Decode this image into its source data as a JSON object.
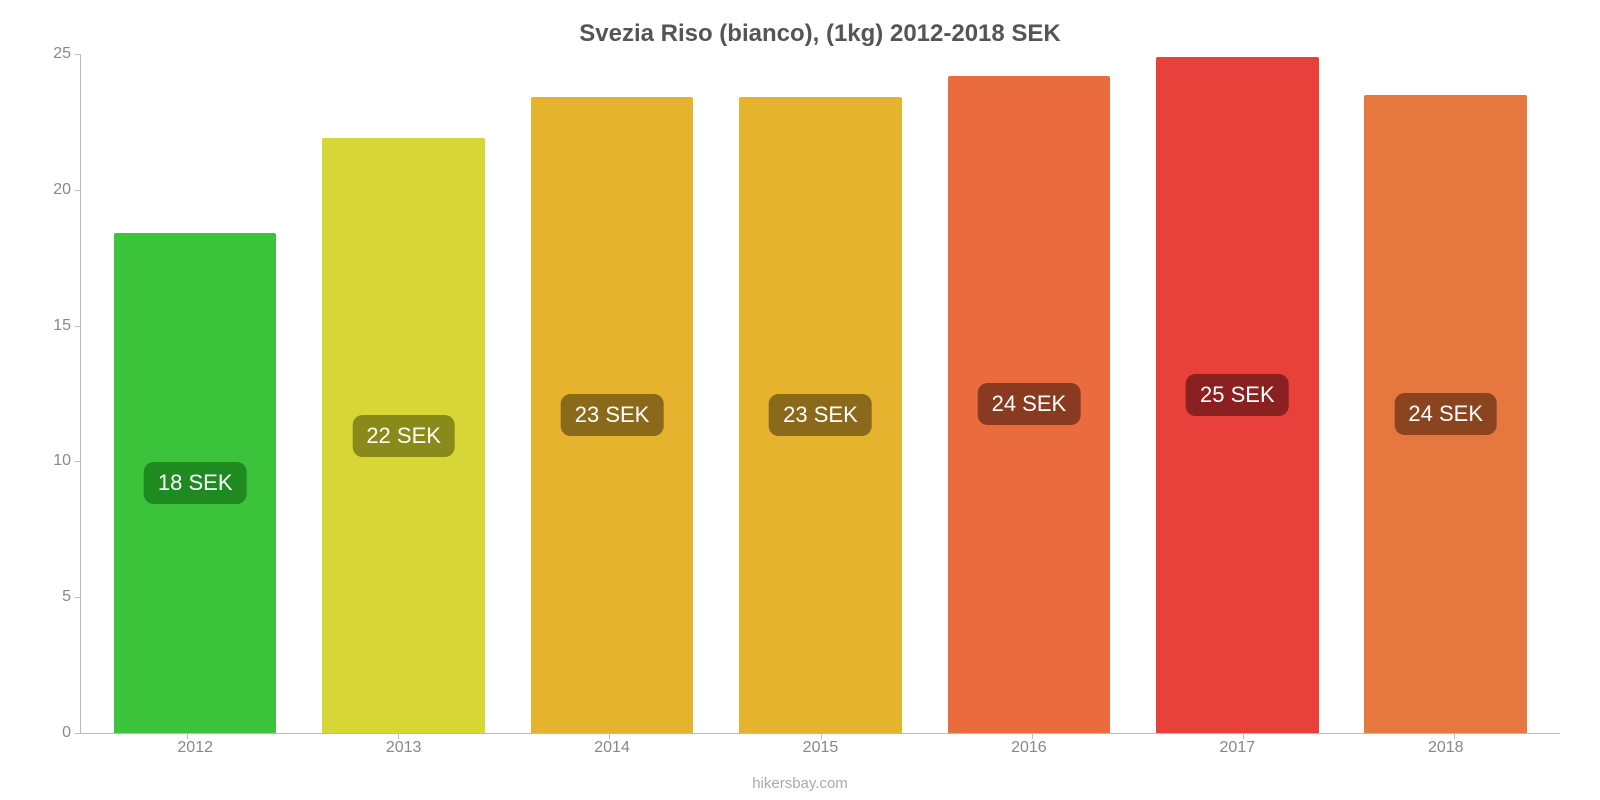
{
  "chart": {
    "type": "bar",
    "title": "Svezia Riso (bianco), (1kg) 2012-2018 SEK",
    "title_fontsize": 24,
    "title_color": "#555555",
    "categories": [
      "2012",
      "2013",
      "2014",
      "2015",
      "2016",
      "2017",
      "2018"
    ],
    "values": [
      18.4,
      21.9,
      23.4,
      23.4,
      24.2,
      24.9,
      23.5
    ],
    "bar_labels": [
      "18 SEK",
      "22 SEK",
      "23 SEK",
      "23 SEK",
      "24 SEK",
      "25 SEK",
      "24 SEK"
    ],
    "bar_colors": [
      "#3bc43b",
      "#d6d636",
      "#e6b32e",
      "#e6b32e",
      "#ea6b3e",
      "#e8413b",
      "#e6783f"
    ],
    "bar_label_bg": [
      "#1f8a1f",
      "#8a8a1a",
      "#8a6a1a",
      "#8a6a1a",
      "#8a3a20",
      "#8a2020",
      "#8a4520"
    ],
    "bar_label_color": "#ffffff",
    "bar_label_fontsize": 22,
    "ylim": [
      0,
      25
    ],
    "ytick_step": 5,
    "y_ticks": [
      0,
      5,
      10,
      15,
      20,
      25
    ],
    "x_label_fontsize": 16,
    "y_label_fontsize": 16,
    "axis_color": "#bbbbbb",
    "tick_label_color": "#888888",
    "background_color": "#ffffff",
    "bar_width": 0.78,
    "attribution": "hikersbay.com",
    "attribution_color": "#aaaaaa",
    "attribution_fontsize": 15
  }
}
